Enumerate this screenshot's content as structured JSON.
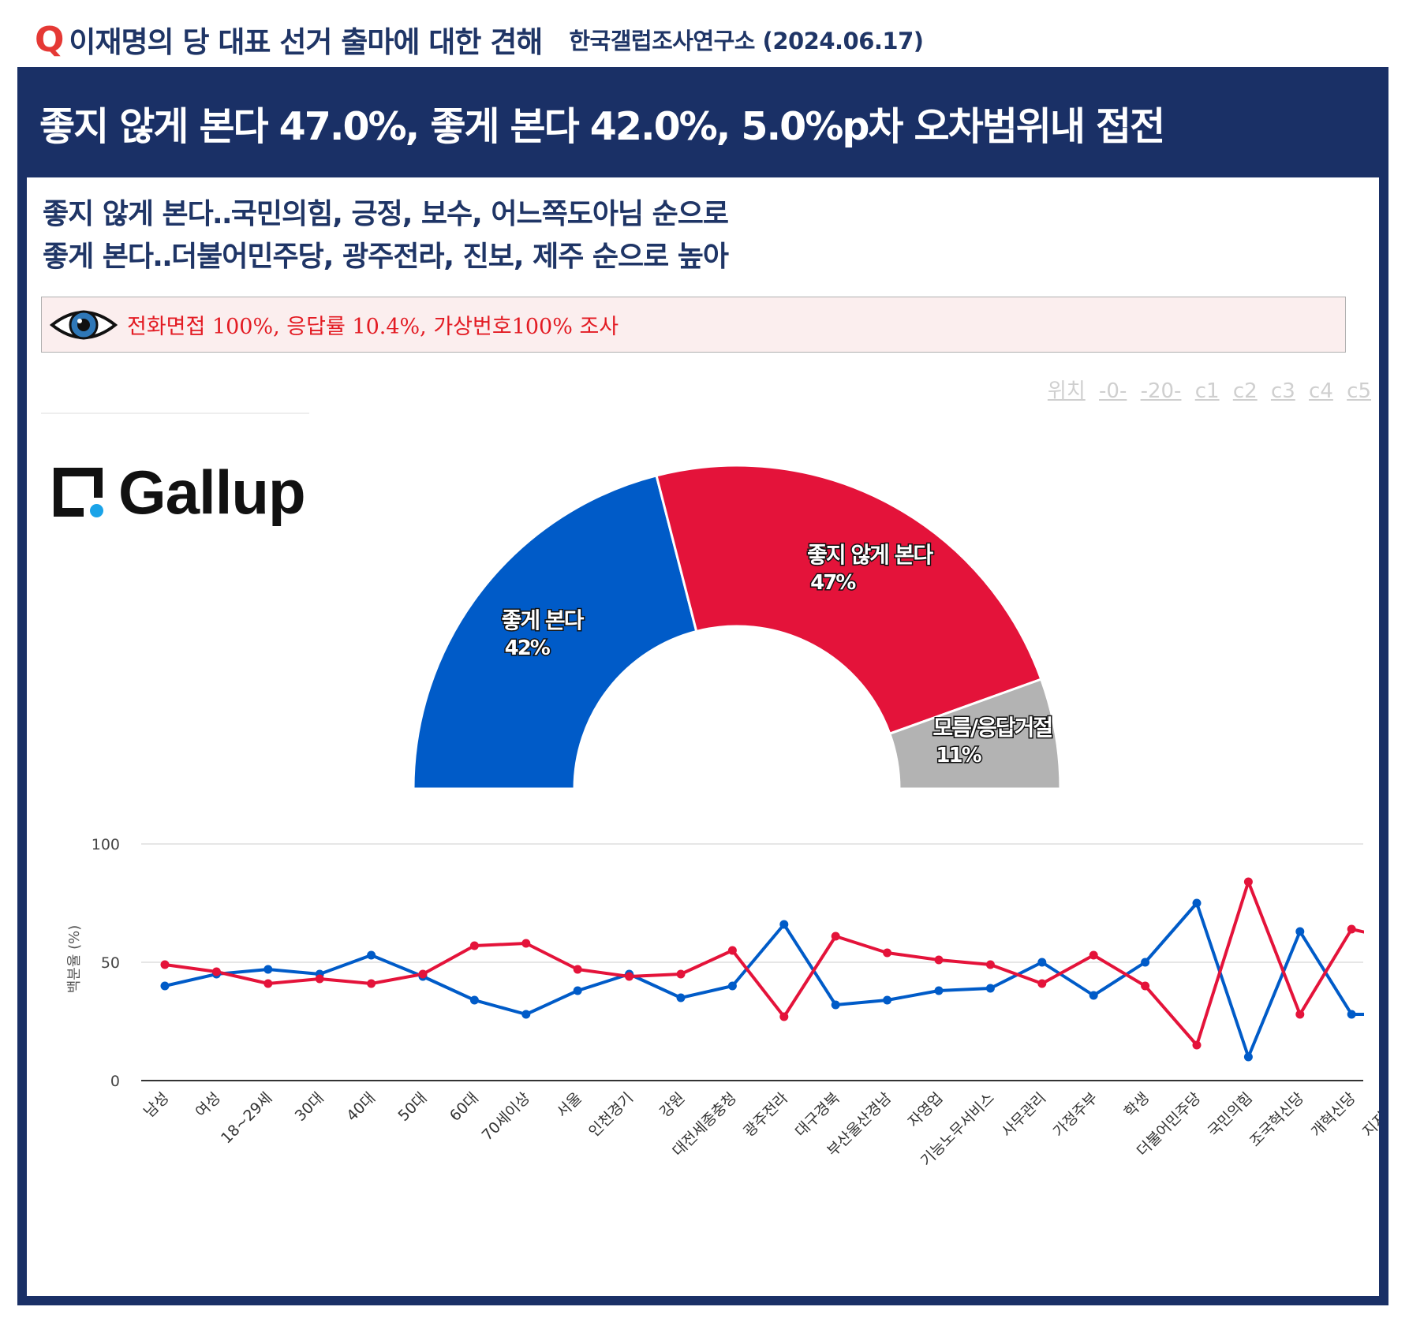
{
  "header": {
    "q_mark": "Q",
    "question": "이재명의 당 대표 선거 출마에 대한 견해",
    "source": "한국갤럽조사연구소 (2024.06.17)"
  },
  "banner": {
    "headline": "좋지 않게 본다 47.0%, 좋게 본다 42.0%, 5.0%p차 오차범위내 접전"
  },
  "summary": {
    "line1": "좋지 않게 본다‥국민의힘, 긍정, 보수, 어느쪽도아님 순으로",
    "line2": "좋게 본다‥더불어민주당, 광주전라, 진보, 제주 순으로 높아"
  },
  "method_note": {
    "icon": "eye-icon",
    "text": "전화면접 100%, 응답률 10.4%, 가상번호100% 조사"
  },
  "position_links": {
    "label": "위치",
    "items": [
      "-0-",
      "-20-",
      "c1",
      "c2",
      "c3",
      "c4",
      "c5"
    ]
  },
  "logo": {
    "text": "Gallup"
  },
  "colors": {
    "positive": "#005bc8",
    "negative": "#e4133a",
    "unknown": "#b3b3b3",
    "navy": "#1a3066"
  },
  "chart_data": [
    {
      "type": "pie",
      "variant": "half-donut",
      "slices": [
        {
          "label": "좋게 본다",
          "value": 42,
          "display": "42%"
        },
        {
          "label": "좋지 않게 본다",
          "value": 47,
          "display": "47%"
        },
        {
          "label": "모름/응답거절",
          "value": 11,
          "display": "11%"
        }
      ]
    },
    {
      "type": "line",
      "ylabel": "백분율 (%)",
      "ylim": [
        0,
        100
      ],
      "yticks": [
        0,
        50,
        100
      ],
      "grid": true,
      "categories": [
        "남성",
        "여성",
        "18~29세",
        "30대",
        "40대",
        "50대",
        "60대",
        "70세이상",
        "서울",
        "인천경기",
        "강원",
        "대전세종충청",
        "광주전라",
        "대구경북",
        "부산울산경남",
        "자영업",
        "기능노무서비스",
        "사무관리",
        "가정주부",
        "학생",
        "더불어민주당",
        "국민의힘",
        "조국혁신당",
        "개혁신당",
        "지지정당"
      ],
      "series": [
        {
          "key": "positive",
          "values": [
            40,
            45,
            47,
            45,
            53,
            44,
            34,
            28,
            38,
            45,
            35,
            40,
            66,
            32,
            34,
            38,
            39,
            50,
            36,
            50,
            75,
            10,
            63,
            28,
            28
          ]
        },
        {
          "key": "negative",
          "values": [
            49,
            46,
            41,
            43,
            41,
            45,
            57,
            58,
            47,
            44,
            45,
            55,
            27,
            61,
            54,
            51,
            49,
            41,
            53,
            40,
            15,
            84,
            28,
            64,
            59
          ]
        }
      ]
    }
  ]
}
